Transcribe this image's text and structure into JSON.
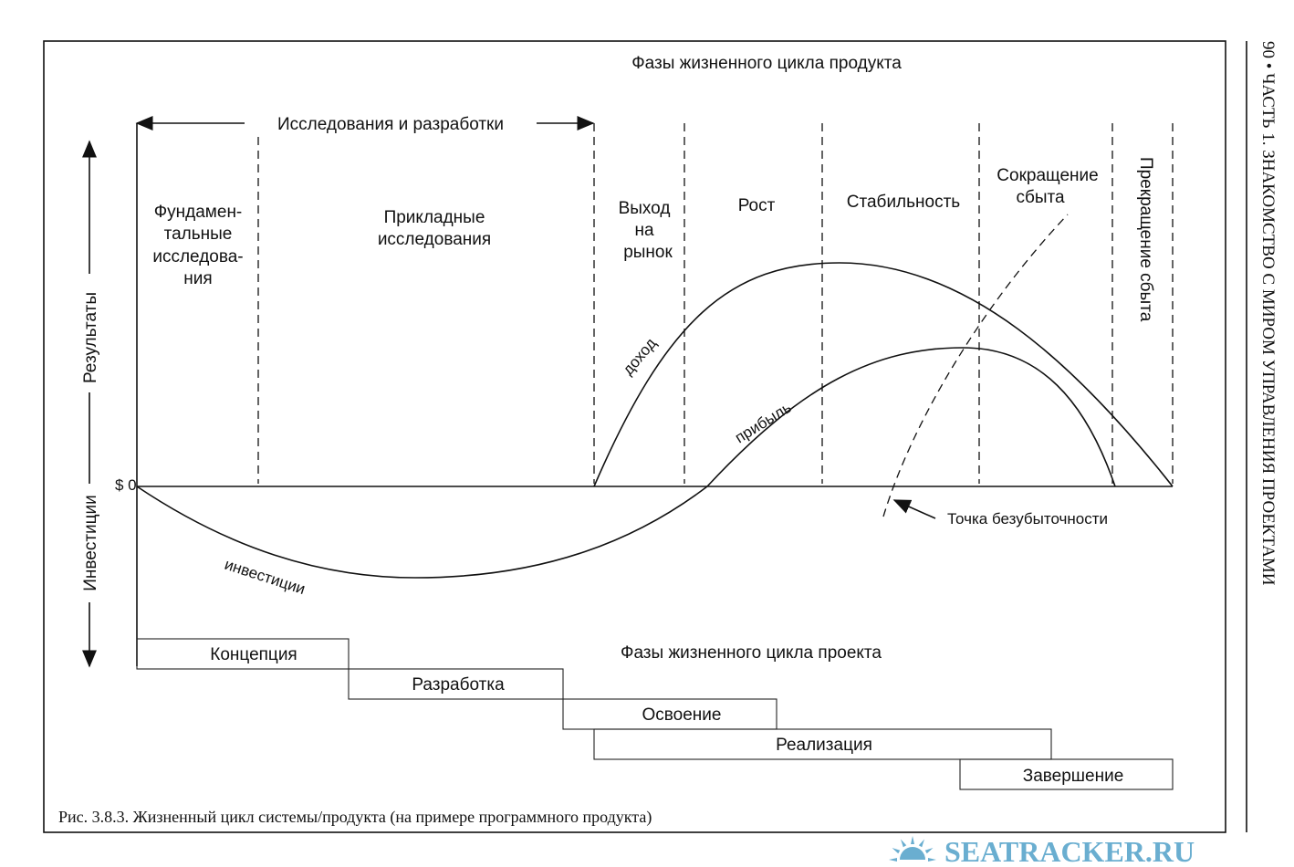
{
  "page_header": "90 • ЧАСТЬ 1. ЗНАКОМСТВО С МИРОМ УПРАВЛЕНИЯ ПРОЕКТАМИ",
  "product_title": "Фазы жизненного цикла продукта",
  "rnd_label": "Исследования и разработки",
  "axis": {
    "results": "Результаты",
    "investments": "Инвестиции",
    "zero": "$ 0"
  },
  "product_phases": {
    "fundamental": [
      "Фундамен-",
      "тальные",
      "исследова-",
      "ния"
    ],
    "applied": [
      "Прикладные",
      "исследования"
    ],
    "launch": [
      "Выход",
      "на",
      "рынок"
    ],
    "growth": "Рост",
    "stability": "Стабильность",
    "decline": [
      "Сокращение",
      "сбыта"
    ],
    "termination": "Прекращение сбыта"
  },
  "curves": {
    "revenue": "доход",
    "profit": "прибыль",
    "investment": "инвестиции"
  },
  "break_even": "Точка безубыточности",
  "project_title": "Фазы жизненного цикла проекта",
  "project_phases": [
    "Концепция",
    "Разработка",
    "Освоение",
    "Реализация",
    "Завершение"
  ],
  "caption": "Рис. 3.8.3. Жизненный цикл системы/продукта (на примере программного продукта)",
  "watermark": "SEATRACKER.RU",
  "colors": {
    "ink": "#111111",
    "watermark": "#6aaed0"
  }
}
